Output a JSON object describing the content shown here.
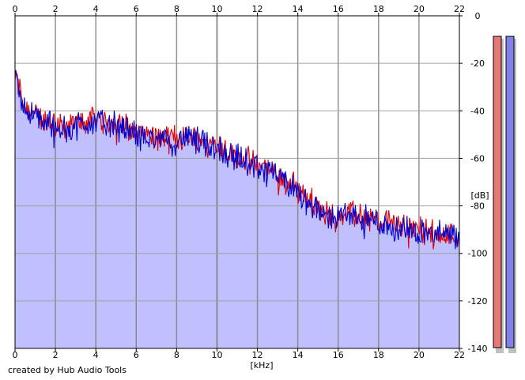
{
  "chart_data": {
    "type": "area",
    "title": "",
    "xlabel": "[kHz]",
    "ylabel": "[dB]",
    "xlim": [
      0,
      22
    ],
    "ylim": [
      -140,
      0
    ],
    "x_ticks": [
      "0",
      "2",
      "4",
      "6",
      "8",
      "10",
      "12",
      "14",
      "16",
      "18",
      "20",
      "22"
    ],
    "y_ticks": [
      "0",
      "-20",
      "-40",
      "-60",
      "-80",
      "-100",
      "-120",
      "-140"
    ],
    "grid": true,
    "series": [
      {
        "color": "#e00000",
        "x": [
          0,
          0.2,
          0.5,
          1,
          1.5,
          2,
          2.5,
          3,
          3.5,
          4,
          4.5,
          5,
          5.5,
          6,
          6.5,
          7,
          7.5,
          8,
          8.5,
          9,
          9.5,
          10,
          10.5,
          11,
          11.5,
          12,
          12.5,
          13,
          13.5,
          14,
          14.5,
          15,
          15.5,
          16,
          16.5,
          17,
          17.5,
          18,
          18.5,
          19,
          19.5,
          20,
          20.5,
          21,
          21.5,
          22
        ],
        "values": [
          -25,
          -30,
          -38,
          -42,
          -44,
          -45,
          -46,
          -45,
          -44,
          -43,
          -44,
          -45,
          -47,
          -49,
          -50,
          -51,
          -52,
          -51,
          -50,
          -52,
          -53,
          -54,
          -57,
          -59,
          -61,
          -62,
          -65,
          -67,
          -70,
          -73,
          -77,
          -81,
          -84,
          -83,
          -83,
          -84,
          -85,
          -86,
          -87,
          -88,
          -89,
          -90,
          -91,
          -91,
          -92,
          -93
        ]
      },
      {
        "color": "#0000d0",
        "x": [
          0,
          0.2,
          0.5,
          1,
          1.5,
          2,
          2.5,
          3,
          3.5,
          4,
          4.5,
          5,
          5.5,
          6,
          6.5,
          7,
          7.5,
          8,
          8.5,
          9,
          9.5,
          10,
          10.5,
          11,
          11.5,
          12,
          12.5,
          13,
          13.5,
          14,
          14.5,
          15,
          15.5,
          16,
          16.5,
          17,
          17.5,
          18,
          18.5,
          19,
          19.5,
          20,
          20.5,
          21,
          21.5,
          22
        ],
        "values": [
          -24,
          -31,
          -39,
          -43,
          -45,
          -46,
          -47,
          -46,
          -45,
          -44,
          -45,
          -46,
          -48,
          -50,
          -51,
          -52,
          -53,
          -52,
          -51,
          -53,
          -54,
          -55,
          -58,
          -60,
          -62,
          -63,
          -66,
          -68,
          -71,
          -74,
          -78,
          -82,
          -85,
          -84,
          -84,
          -85,
          -86,
          -87,
          -88,
          -89,
          -90,
          -91,
          -92,
          -92,
          -93,
          -94
        ]
      }
    ],
    "fill_color": "#c0c0ff",
    "level_meters": [
      {
        "color": "#e87878"
      },
      {
        "color": "#8080e8"
      }
    ]
  },
  "footer": {
    "credit": "created by Hub Audio Tools"
  }
}
